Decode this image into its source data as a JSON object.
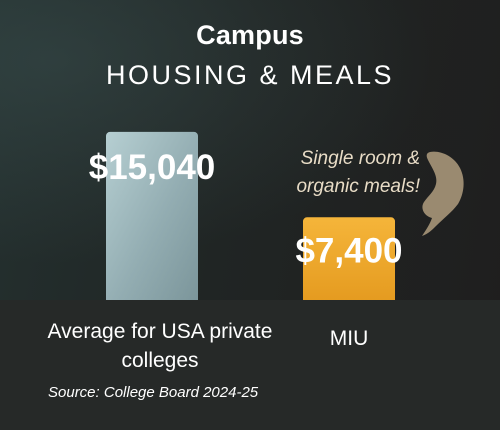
{
  "title": "Campus",
  "subtitle": "HOUSING & MEALS",
  "annotation": "Single room & organic meals!",
  "source": "Source: College Board 2024-25",
  "colors": {
    "bar_average": "#a9c2c5",
    "bar_miu": "#f2ac2f",
    "annotation": "#e8dcc6",
    "pointer": "#9a8a70"
  },
  "icons": {
    "pointer": "pointing-hand-icon"
  },
  "chart_data": {
    "type": "bar",
    "title": "Campus HOUSING & MEALS",
    "categories": [
      "Average for USA private colleges",
      "MIU"
    ],
    "values": [
      15040,
      7400
    ],
    "value_labels": [
      "$15,040",
      "$7,400"
    ],
    "xlabel": "",
    "ylabel": "",
    "ylim": [
      0,
      17000
    ],
    "grid": false,
    "legend": "none"
  }
}
